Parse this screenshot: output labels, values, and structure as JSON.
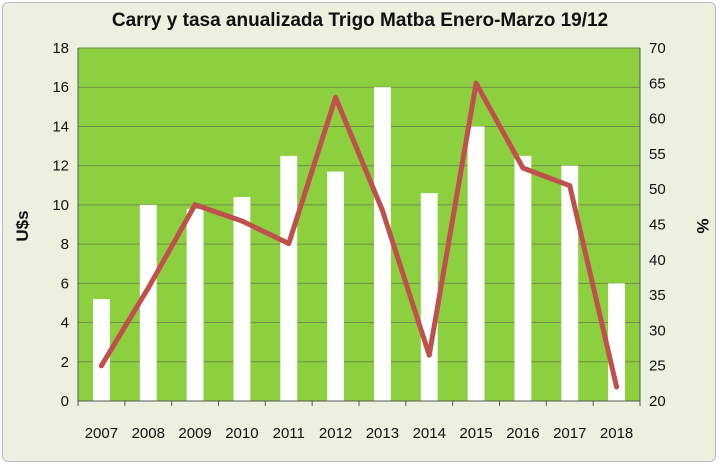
{
  "chart_data": {
    "type": "bar",
    "title": "Carry y tasa anualizada Trigo Matba Enero-Marzo 19/12",
    "categories": [
      "2007",
      "2008",
      "2009",
      "2010",
      "2011",
      "2012",
      "2013",
      "2014",
      "2015",
      "2016",
      "2017",
      "2018"
    ],
    "series": [
      {
        "type": "bar",
        "axis": "left",
        "values": [
          5.2,
          10.0,
          9.8,
          10.4,
          12.5,
          11.7,
          16.0,
          10.6,
          14.0,
          12.5,
          12.0,
          6.0
        ]
      },
      {
        "type": "line",
        "axis": "right",
        "values": [
          25.0,
          36.0,
          47.8,
          45.5,
          42.3,
          63.0,
          47.0,
          26.5,
          65.0,
          53.0,
          50.5,
          22.0
        ]
      }
    ],
    "ylabel": "U$s",
    "ylim": [
      0,
      18
    ],
    "yticks": [
      0,
      2,
      4,
      6,
      8,
      10,
      12,
      14,
      16,
      18
    ],
    "y2label": "%",
    "y2lim": [
      20,
      70
    ],
    "y2ticks": [
      20,
      25,
      30,
      35,
      40,
      45,
      50,
      55,
      60,
      65,
      70
    ],
    "grid": true,
    "colors": {
      "plot_background": "#8ccf3f",
      "bars": "#ffffff",
      "line": "#c0504d",
      "grid": "#6e8f45",
      "frame": "#ebf1de"
    }
  }
}
